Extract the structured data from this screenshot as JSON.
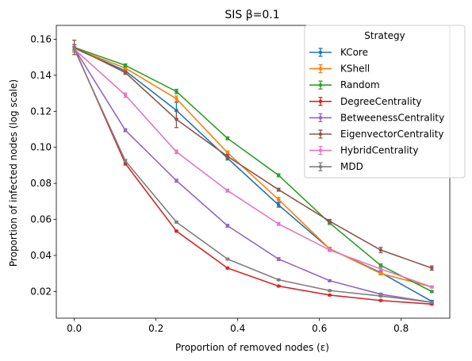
{
  "chart_data": {
    "type": "line",
    "title": "SIS β=0.1",
    "xlabel": "Proportion of removed nodes (ε)",
    "ylabel": "Proportion of infected nodes (log scale)",
    "xlim": [
      -0.044,
      0.919
    ],
    "ylim": [
      0.0052,
      0.1677
    ],
    "xticks": [
      0.0,
      0.2,
      0.4,
      0.6,
      0.8
    ],
    "xtick_labels": [
      "0.0",
      "0.2",
      "0.4",
      "0.6",
      "0.8"
    ],
    "yticks": [
      0.02,
      0.04,
      0.06,
      0.08,
      0.1,
      0.12,
      0.14,
      0.16
    ],
    "ytick_labels": [
      "0.02",
      "0.04",
      "0.06",
      "0.08",
      "0.10",
      "0.12",
      "0.14",
      "0.16"
    ],
    "grid": false,
    "legend_title": "Strategy",
    "legend_position": "top-right",
    "x": [
      0.0,
      0.125,
      0.25,
      0.375,
      0.5,
      0.625,
      0.75,
      0.875
    ],
    "series": [
      {
        "name": "KCore",
        "color": "#1f77b4",
        "values": [
          0.155,
          0.1425,
          0.1205,
          0.094,
          0.068,
          0.0437,
          0.0305,
          0.0145
        ],
        "errors": [
          0.002,
          0.001,
          0.0045,
          0.001,
          0.0012,
          0.0008,
          0.0008,
          0.0005
        ]
      },
      {
        "name": "KShell",
        "color": "#ff7f0e",
        "values": [
          0.155,
          0.144,
          0.127,
          0.097,
          0.071,
          0.0437,
          0.03,
          0.0225
        ],
        "errors": [
          0.002,
          0.001,
          0.0015,
          0.001,
          0.0012,
          0.0008,
          0.0008,
          0.0005
        ]
      },
      {
        "name": "Random",
        "color": "#2ca02c",
        "values": [
          0.1555,
          0.1455,
          0.131,
          0.105,
          0.0845,
          0.058,
          0.0345,
          0.02
        ],
        "errors": [
          0.0015,
          0.0008,
          0.0012,
          0.0008,
          0.0008,
          0.0008,
          0.0008,
          0.0005
        ]
      },
      {
        "name": "DegreeCentrality",
        "color": "#d62728",
        "values": [
          0.155,
          0.091,
          0.0535,
          0.033,
          0.023,
          0.018,
          0.015,
          0.013
        ],
        "errors": [
          0.002,
          0.0008,
          0.0005,
          0.0005,
          0.0004,
          0.0004,
          0.0004,
          0.0004
        ]
      },
      {
        "name": "BetweenessCentrality",
        "color": "#9467bd",
        "values": [
          0.155,
          0.1095,
          0.0815,
          0.0565,
          0.038,
          0.026,
          0.0185,
          0.014
        ],
        "errors": [
          0.002,
          0.0008,
          0.0008,
          0.0008,
          0.0008,
          0.0005,
          0.0005,
          0.0004
        ]
      },
      {
        "name": "EigenvectorCentrality",
        "color": "#8c564b",
        "values": [
          0.1555,
          0.1415,
          0.1155,
          0.095,
          0.0765,
          0.059,
          0.043,
          0.033
        ],
        "errors": [
          0.004,
          0.001,
          0.0045,
          0.001,
          0.0008,
          0.001,
          0.0015,
          0.0012
        ]
      },
      {
        "name": "HybridCentrality",
        "color": "#e377c2",
        "values": [
          0.1545,
          0.129,
          0.0975,
          0.076,
          0.0575,
          0.043,
          0.0325,
          0.0225
        ],
        "errors": [
          0.0015,
          0.0012,
          0.001,
          0.0008,
          0.0008,
          0.0008,
          0.0008,
          0.0005
        ]
      },
      {
        "name": "MDD",
        "color": "#7f7f7f",
        "values": [
          0.1545,
          0.0925,
          0.0585,
          0.038,
          0.0265,
          0.0205,
          0.0175,
          0.014
        ],
        "errors": [
          0.0015,
          0.0008,
          0.0005,
          0.0005,
          0.0004,
          0.0004,
          0.0004,
          0.0004
        ]
      }
    ]
  }
}
